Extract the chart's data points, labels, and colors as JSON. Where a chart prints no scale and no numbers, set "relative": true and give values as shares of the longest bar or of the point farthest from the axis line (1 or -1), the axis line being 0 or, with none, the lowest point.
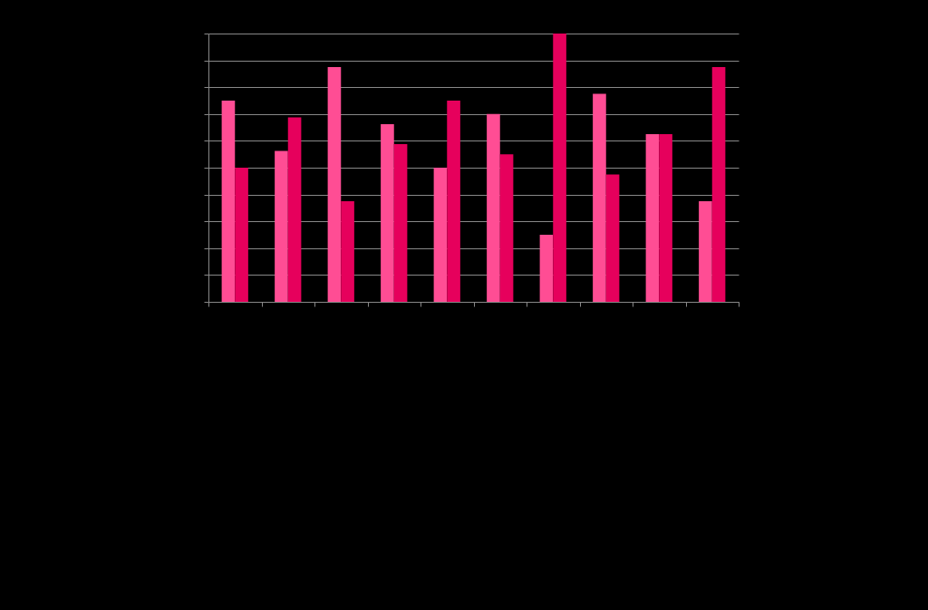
{
  "chart_data": {
    "type": "bar",
    "relative": true,
    "categories": [
      null,
      null,
      null,
      null,
      null,
      null,
      null,
      null,
      null,
      null
    ],
    "series": [
      {
        "color": "#ff4d94",
        "values": [
          0.75,
          0.5625,
          0.875,
          0.6625,
          0.5,
          0.7,
          0.25,
          0.775,
          0.625,
          0.375
        ]
      },
      {
        "color": "#e6005c",
        "values": [
          0.5,
          0.6875,
          0.375,
          0.5875,
          0.75,
          0.55,
          1,
          0.475,
          0.625,
          0.875
        ]
      }
    ],
    "grid": "y"
  }
}
